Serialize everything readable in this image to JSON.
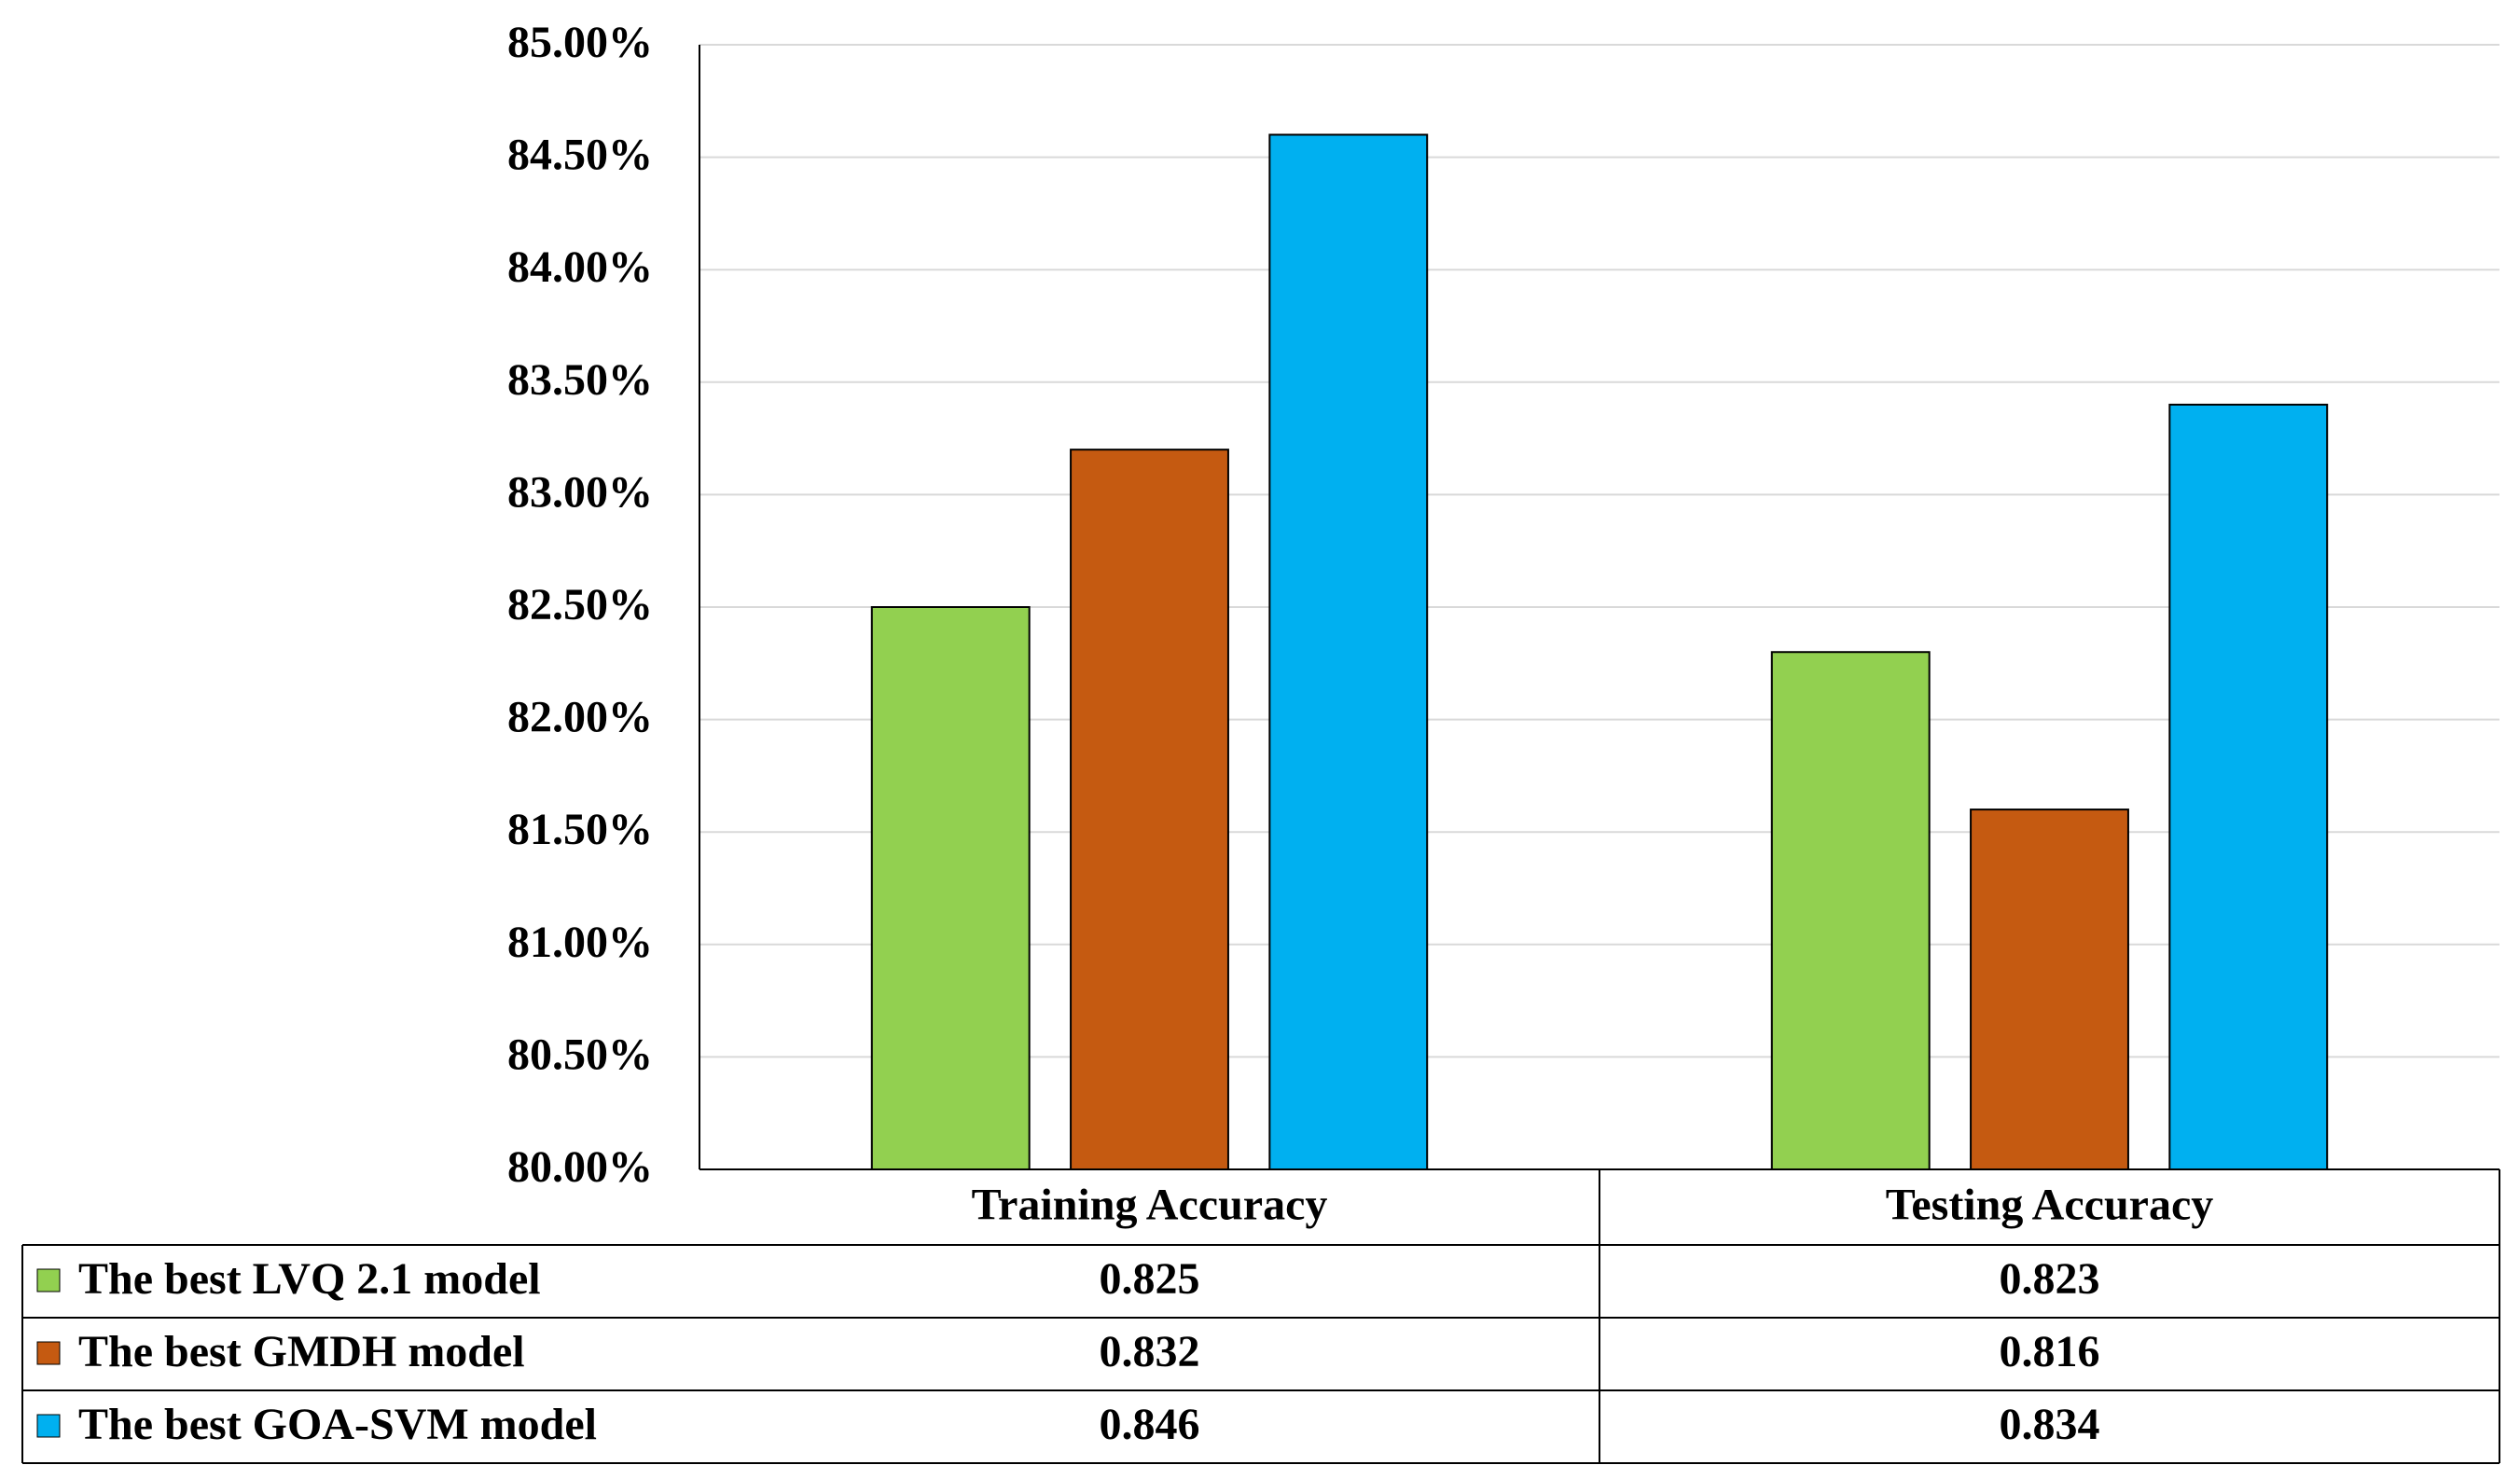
{
  "chart_data": {
    "type": "bar",
    "categories": [
      "Training Accuracy",
      "Testing Accuracy"
    ],
    "series": [
      {
        "name": "The best LVQ 2.1 model",
        "color": "#92d050",
        "values": [
          0.825,
          0.823
        ]
      },
      {
        "name": "The best GMDH model",
        "color": "#c55a11",
        "values": [
          0.832,
          0.816
        ]
      },
      {
        "name": "The best GOA-SVM model",
        "color": "#00b0f0",
        "values": [
          0.846,
          0.834
        ]
      }
    ],
    "ylim": [
      0.8,
      0.85
    ],
    "yticks": [
      {
        "value": 0.8,
        "label": "80.00%"
      },
      {
        "value": 0.805,
        "label": "80.50%"
      },
      {
        "value": 0.81,
        "label": "81.00%"
      },
      {
        "value": 0.815,
        "label": "81.50%"
      },
      {
        "value": 0.82,
        "label": "82.00%"
      },
      {
        "value": 0.825,
        "label": "82.50%"
      },
      {
        "value": 0.83,
        "label": "83.00%"
      },
      {
        "value": 0.835,
        "label": "83.50%"
      },
      {
        "value": 0.84,
        "label": "84.00%"
      },
      {
        "value": 0.845,
        "label": "84.50%"
      },
      {
        "value": 0.85,
        "label": "85.00%"
      }
    ],
    "grid": true
  }
}
